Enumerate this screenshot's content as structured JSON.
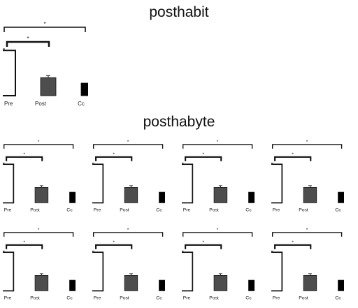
{
  "titles": {
    "top": "posthabit",
    "middle": "posthabyte"
  },
  "colors": {
    "pre": "#ffffff",
    "post": "#4d4d4d",
    "third": "#000000",
    "bracket": "#111111"
  },
  "chart_data": {
    "type": "bar",
    "panel_count": 9,
    "categories": [
      "Pre",
      "Post",
      "Cc"
    ],
    "values": [
      0.9,
      0.36,
      0.25
    ],
    "errors": [
      0.03,
      0.04,
      0
    ],
    "ylim": [
      0,
      1
    ],
    "significance": [
      {
        "between": [
          "Pre",
          "Post"
        ],
        "label": "*"
      },
      {
        "between": [
          "Pre",
          "Cc"
        ],
        "label": "*"
      }
    ],
    "xlabel": "",
    "ylabel": ""
  }
}
